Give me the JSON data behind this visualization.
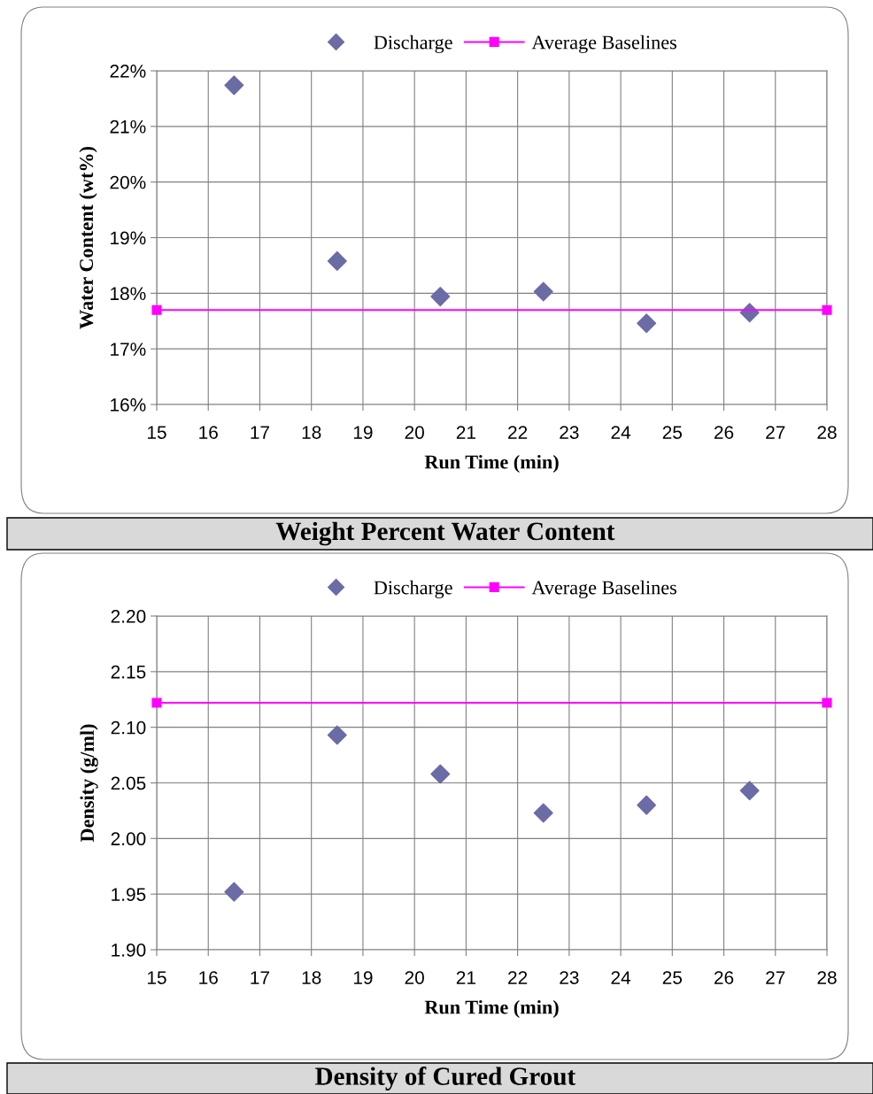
{
  "chart_data": [
    {
      "type": "scatter",
      "title": "Weight Percent Water Content",
      "xlabel": "Run Time (min)",
      "ylabel": "Water Content (wt%)",
      "xlim": [
        15,
        28
      ],
      "xticks": [
        15,
        16,
        17,
        18,
        19,
        20,
        21,
        22,
        23,
        24,
        25,
        26,
        27,
        28
      ],
      "ylim": [
        16,
        22
      ],
      "yticks": [
        {
          "value": 16,
          "label": "16%"
        },
        {
          "value": 17,
          "label": "17%"
        },
        {
          "value": 18,
          "label": "18%"
        },
        {
          "value": 19,
          "label": "19%"
        },
        {
          "value": 20,
          "label": "20%"
        },
        {
          "value": 21,
          "label": "21%"
        },
        {
          "value": 22,
          "label": "22%"
        }
      ],
      "grid": true,
      "legend": "top",
      "series": [
        {
          "name": "Discharge",
          "marker": "diamond",
          "color": "#6b6ba6",
          "x": [
            16.5,
            18.5,
            20.5,
            22.5,
            24.5,
            26.5
          ],
          "values": [
            21.74,
            18.58,
            17.94,
            18.03,
            17.46,
            17.65
          ]
        },
        {
          "name": "Average Baselines",
          "type": "line",
          "marker": "square",
          "color": "#ff00ff",
          "x": [
            15,
            28
          ],
          "values": [
            17.7,
            17.7
          ]
        }
      ]
    },
    {
      "type": "scatter",
      "title": "Density of Cured Grout",
      "xlabel": "Run Time (min)",
      "ylabel": "Density (g/ml)",
      "xlim": [
        15,
        28
      ],
      "xticks": [
        15,
        16,
        17,
        18,
        19,
        20,
        21,
        22,
        23,
        24,
        25,
        26,
        27,
        28
      ],
      "ylim": [
        1.9,
        2.2
      ],
      "yticks": [
        {
          "value": 1.9,
          "label": "1.90"
        },
        {
          "value": 1.95,
          "label": "1.95"
        },
        {
          "value": 2.0,
          "label": "2.00"
        },
        {
          "value": 2.05,
          "label": "2.05"
        },
        {
          "value": 2.1,
          "label": "2.10"
        },
        {
          "value": 2.15,
          "label": "2.15"
        },
        {
          "value": 2.2,
          "label": "2.20"
        }
      ],
      "grid": true,
      "legend": "top",
      "series": [
        {
          "name": "Discharge",
          "marker": "diamond",
          "color": "#6b6ba6",
          "x": [
            16.5,
            18.5,
            20.5,
            22.5,
            24.5,
            26.5
          ],
          "values": [
            1.952,
            2.093,
            2.058,
            2.023,
            2.03,
            2.043
          ]
        },
        {
          "name": "Average Baselines",
          "type": "line",
          "marker": "square",
          "color": "#ff00ff",
          "x": [
            15,
            28
          ],
          "values": [
            2.122,
            2.122
          ]
        }
      ]
    }
  ]
}
